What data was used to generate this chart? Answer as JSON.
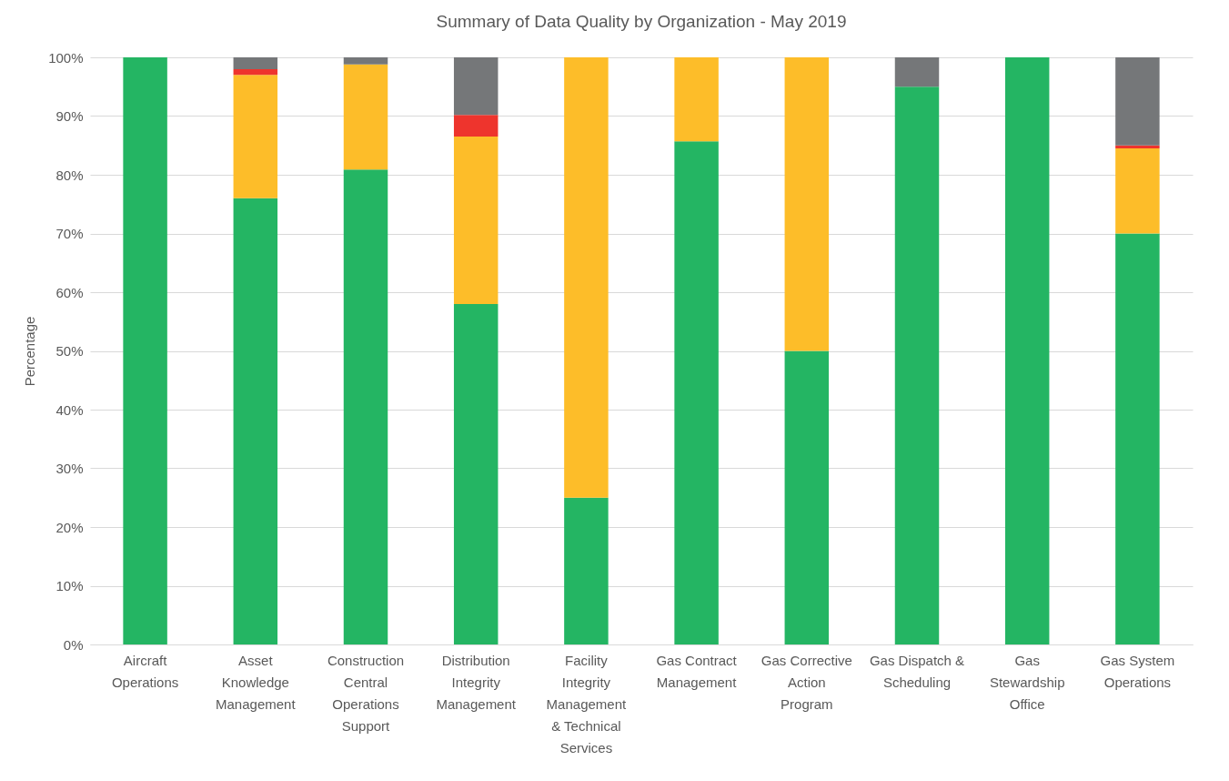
{
  "chart_data": {
    "type": "bar",
    "title": "Summary of Data Quality by Organization - May 2019",
    "ylabel": "Percentage",
    "categories": [
      "Aircraft\nOperations",
      "Asset\nKnowledge\nManagement",
      "Construction\nCentral\nOperations\nSupport",
      "Distribution\nIntegrity\nManagement",
      "Facility\nIntegrity\nManagement\n& Technical\nServices",
      "Gas Contract\nManagement",
      "Gas Corrective\nAction\nProgram",
      "Gas Dispatch &\nScheduling",
      "Gas\nStewardship\nOffice",
      "Gas System\nOperations"
    ],
    "stacked": true,
    "series": [
      {
        "color": "#24b563",
        "values": [
          100,
          76,
          80.9,
          58,
          25,
          85.7,
          50,
          95,
          100,
          70
        ]
      },
      {
        "color": "#fdbd29",
        "values": [
          0,
          21,
          17.9,
          28.5,
          75,
          14.3,
          50,
          0,
          0,
          14.5
        ]
      },
      {
        "color": "#ee342d",
        "values": [
          0,
          1,
          0,
          3.7,
          0,
          0,
          0,
          0,
          0,
          0.5
        ]
      },
      {
        "color": "#757779",
        "values": [
          0,
          2,
          1.2,
          9.8,
          0,
          0,
          0,
          5,
          0,
          15
        ]
      }
    ],
    "ylim": [
      0,
      100
    ],
    "yticks": [
      {
        "value": 0,
        "label": "0%"
      },
      {
        "value": 10,
        "label": "10%"
      },
      {
        "value": 20,
        "label": "20%"
      },
      {
        "value": 30,
        "label": "30%"
      },
      {
        "value": 40,
        "label": "40%"
      },
      {
        "value": 50,
        "label": "50%"
      },
      {
        "value": 60,
        "label": "60%"
      },
      {
        "value": 70,
        "label": "70%"
      },
      {
        "value": 80,
        "label": "80%"
      },
      {
        "value": 90,
        "label": "90%"
      },
      {
        "value": 100,
        "label": "100%"
      }
    ],
    "grid": "y",
    "legend": false
  }
}
